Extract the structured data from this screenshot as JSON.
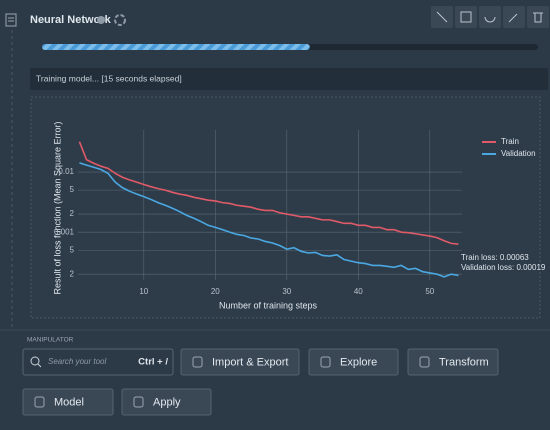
{
  "header": {
    "title": "Neural Network"
  },
  "progress": 54,
  "status": "Training model... [15 seconds elapsed]",
  "chart_data": {
    "type": "line",
    "x": [
      1,
      2,
      3,
      4,
      5,
      6,
      7,
      8,
      9,
      10,
      11,
      12,
      13,
      14,
      15,
      16,
      17,
      18,
      19,
      20,
      21,
      22,
      23,
      24,
      25,
      26,
      27,
      28,
      29,
      30,
      31,
      32,
      33,
      34,
      35,
      36,
      37,
      38,
      39,
      40,
      41,
      42,
      43,
      44,
      45,
      46,
      47,
      48,
      49,
      50,
      51,
      52,
      53,
      54
    ],
    "series": [
      {
        "name": "Train",
        "color": "#e05a68",
        "values": [
          0.032,
          0.016,
          0.014,
          0.0125,
          0.0115,
          0.0095,
          0.0082,
          0.0074,
          0.0068,
          0.0062,
          0.0057,
          0.0053,
          0.005,
          0.0046,
          0.0043,
          0.0041,
          0.0038,
          0.0036,
          0.0034,
          0.0033,
          0.0031,
          0.003,
          0.0028,
          0.0027,
          0.0026,
          0.0024,
          0.0023,
          0.0023,
          0.0021,
          0.002,
          0.0019,
          0.0018,
          0.0018,
          0.0017,
          0.0016,
          0.0016,
          0.0015,
          0.0014,
          0.0014,
          0.0013,
          0.0013,
          0.0012,
          0.0012,
          0.0011,
          0.0011,
          0.001,
          0.00098,
          0.00094,
          0.0009,
          0.00086,
          0.00081,
          0.00072,
          0.00065,
          0.00063
        ]
      },
      {
        "name": "Validation",
        "color": "#4aa8e2",
        "values": [
          0.0142,
          0.013,
          0.012,
          0.011,
          0.0095,
          0.0068,
          0.0055,
          0.0048,
          0.0043,
          0.0039,
          0.0035,
          0.0031,
          0.0028,
          0.0025,
          0.0022,
          0.0019,
          0.0017,
          0.0015,
          0.0013,
          0.0012,
          0.0011,
          0.001,
          0.00092,
          0.00088,
          0.0008,
          0.00077,
          0.0007,
          0.00066,
          0.0006,
          0.00052,
          0.00055,
          0.00048,
          0.00045,
          0.00046,
          0.00041,
          0.0004,
          0.00042,
          0.00035,
          0.00033,
          0.00031,
          0.0003,
          0.00028,
          0.00028,
          0.00027,
          0.00026,
          0.00028,
          0.00024,
          0.00025,
          0.00022,
          0.00021,
          0.0002,
          0.00018,
          0.0002,
          0.00019
        ]
      }
    ],
    "xlabel": "Number of training steps",
    "ylabel": "Result of loss function (Mean Square Error)",
    "xlim": [
      0.8,
      54.5
    ],
    "xticks": [
      10,
      20,
      30,
      40,
      50
    ],
    "ylim": [
      0.00016,
      0.05
    ],
    "yticks": [
      0.01,
      {
        "value": 0.005,
        "label": "5"
      },
      {
        "value": 0.002,
        "label": "2"
      },
      0.001,
      {
        "value": 0.0005,
        "label": "5"
      },
      {
        "value": 0.0002,
        "label": "2"
      }
    ],
    "log_y": true,
    "grid": true,
    "legend": "right",
    "annotations": [
      "Train loss: 0.00063",
      "Validation loss: 0.00019"
    ]
  },
  "manipulator": {
    "label": "MANIPULATOR",
    "search_placeholder": "Search your tool",
    "shortcut": "Ctrl + /",
    "buttons": [
      "Import & Export",
      "Explore",
      "Transform",
      "Model",
      "Apply"
    ]
  }
}
